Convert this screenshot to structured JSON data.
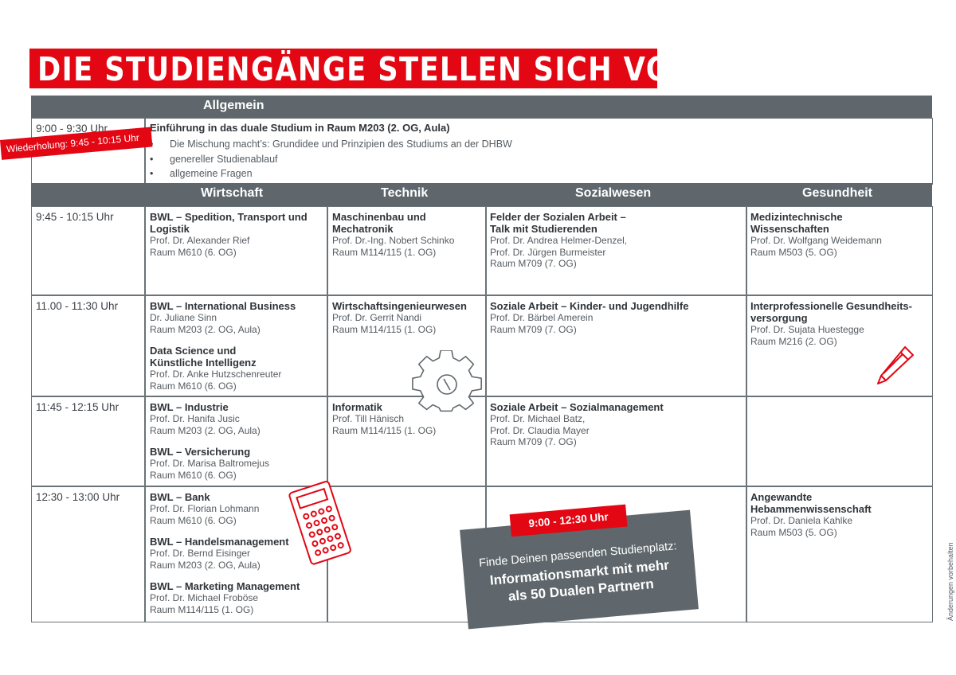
{
  "title": "DIE STUDIENGÄNGE STELLEN SICH VOR!",
  "general": {
    "header": "Allgemein",
    "time": "9:00 - 9:30 Uhr",
    "repeat": "Wiederholung: 9:45 - 10:15 Uhr",
    "title": "Einführung in das duale Studium in Raum M203 (2. OG, Aula)",
    "bullets": [
      "Die Mischung macht’s: Grundidee und Prinzipien des Studiums an der DHBW",
      "genereller Studienablauf",
      "allgemeine Fragen"
    ]
  },
  "columns": [
    "Wirtschaft",
    "Technik",
    "Sozialwesen",
    "Gesundheit"
  ],
  "times": [
    "9:45 - 10:15 Uhr",
    "11.00 - 11:30 Uhr",
    "11:45 - 12:15 Uhr",
    "12:30 - 13:00 Uhr"
  ],
  "rows": [
    {
      "wirtschaft": [
        {
          "title": [
            "BWL – Spedition, Transport und",
            "Logistik"
          ],
          "lines": [
            "Prof. Dr. Alexander Rief",
            "Raum M610 (6. OG)"
          ]
        }
      ],
      "technik": {
        "title": [
          "Maschinenbau und",
          "Mechatronik"
        ],
        "lines": [
          "Prof. Dr.-Ing. Nobert Schinko",
          "Raum M114/115 (1. OG)"
        ]
      },
      "sozialwesen": {
        "title": [
          "Felder der Sozialen Arbeit –",
          "Talk mit Studierenden"
        ],
        "lines": [
          "Prof. Dr. Andrea Helmer-Denzel,",
          "Prof. Dr. Jürgen Burmeister",
          "Raum  M709 (7. OG)"
        ]
      },
      "gesundheit": {
        "title": [
          "Medizintechnische",
          "Wissenschaften"
        ],
        "lines": [
          "Prof. Dr. Wolfgang Weidemann",
          "Raum M503 (5. OG)"
        ]
      }
    },
    {
      "wirtschaft": [
        {
          "title": [
            "BWL – International Business"
          ],
          "lines": [
            "Dr. Juliane Sinn",
            "Raum M203 (2. OG, Aula)"
          ]
        },
        {
          "title": [
            "Data Science und",
            "Künstliche Intelligenz"
          ],
          "lines": [
            "Prof. Dr. Anke Hutzschenreuter",
            "Raum M610 (6. OG)"
          ]
        }
      ],
      "technik": {
        "title": [
          "Wirtschaftsingenieurwesen"
        ],
        "lines": [
          "Prof. Dr. Gerrit Nandi",
          "Raum M114/115 (1. OG)"
        ]
      },
      "sozialwesen": {
        "title": [
          "Soziale Arbeit – Kinder- und Jugendhilfe"
        ],
        "lines": [
          "Prof. Dr. Bärbel Amerein",
          "Raum  M709 (7. OG)"
        ]
      },
      "gesundheit": {
        "title": [
          "Interprofessionelle Gesundheits-",
          "versorgung"
        ],
        "lines": [
          "Prof. Dr. Sujata Huestegge",
          "Raum M216 (2. OG)"
        ]
      }
    },
    {
      "wirtschaft": [
        {
          "title": [
            "BWL – Industrie"
          ],
          "lines": [
            "Prof. Dr. Hanifa Jusic",
            "Raum M203 (2. OG, Aula)"
          ]
        },
        {
          "title": [
            "BWL – Versicherung"
          ],
          "lines": [
            "Prof. Dr. Marisa Baltromejus",
            "Raum M610 (6. OG)"
          ]
        }
      ],
      "technik": {
        "title": [
          "Informatik"
        ],
        "lines": [
          "Prof. Till Hänisch",
          "Raum M114/115 (1. OG)"
        ]
      },
      "sozialwesen": {
        "title": [
          "Soziale Arbeit – Sozialmanagement"
        ],
        "lines": [
          "Prof. Dr. Michael Batz,",
          "Prof. Dr. Claudia Mayer",
          "Raum  M709 (7. OG)"
        ]
      }
    },
    {
      "wirtschaft": [
        {
          "title": [
            "BWL – Bank"
          ],
          "lines": [
            "Prof. Dr. Florian Lohmann",
            "Raum M610 (6. OG)"
          ]
        },
        {
          "title": [
            "BWL – Handelsmanagement"
          ],
          "lines": [
            "Prof. Dr. Bernd Eisinger",
            "Raum M203 (2. OG, Aula)"
          ]
        },
        {
          "title": [
            "BWL – Marketing Management"
          ],
          "lines": [
            "Prof. Dr. Michael Froböse",
            "Raum M114/115 (1. OG)"
          ]
        }
      ],
      "gesundheit": {
        "title": [
          "Angewandte",
          "Hebammenwissenschaft"
        ],
        "lines": [
          "Prof. Dr. Daniela Kahlke",
          "Raum M503 (5. OG)"
        ]
      }
    }
  ],
  "market": {
    "time": "9:00 - 12:30 Uhr",
    "line1": "Finde Deinen passenden Studienplatz:",
    "line2": "Informationsmarkt mit mehr",
    "line3": "als 50 Dualen Partnern"
  },
  "side_note": "Änderungen vorbehalten",
  "icons": [
    "gear-icon",
    "calculator-icon",
    "pencil-icon"
  ],
  "colors": {
    "accent": "#e30613",
    "header": "#5f676c",
    "grid": "#6b7378"
  }
}
